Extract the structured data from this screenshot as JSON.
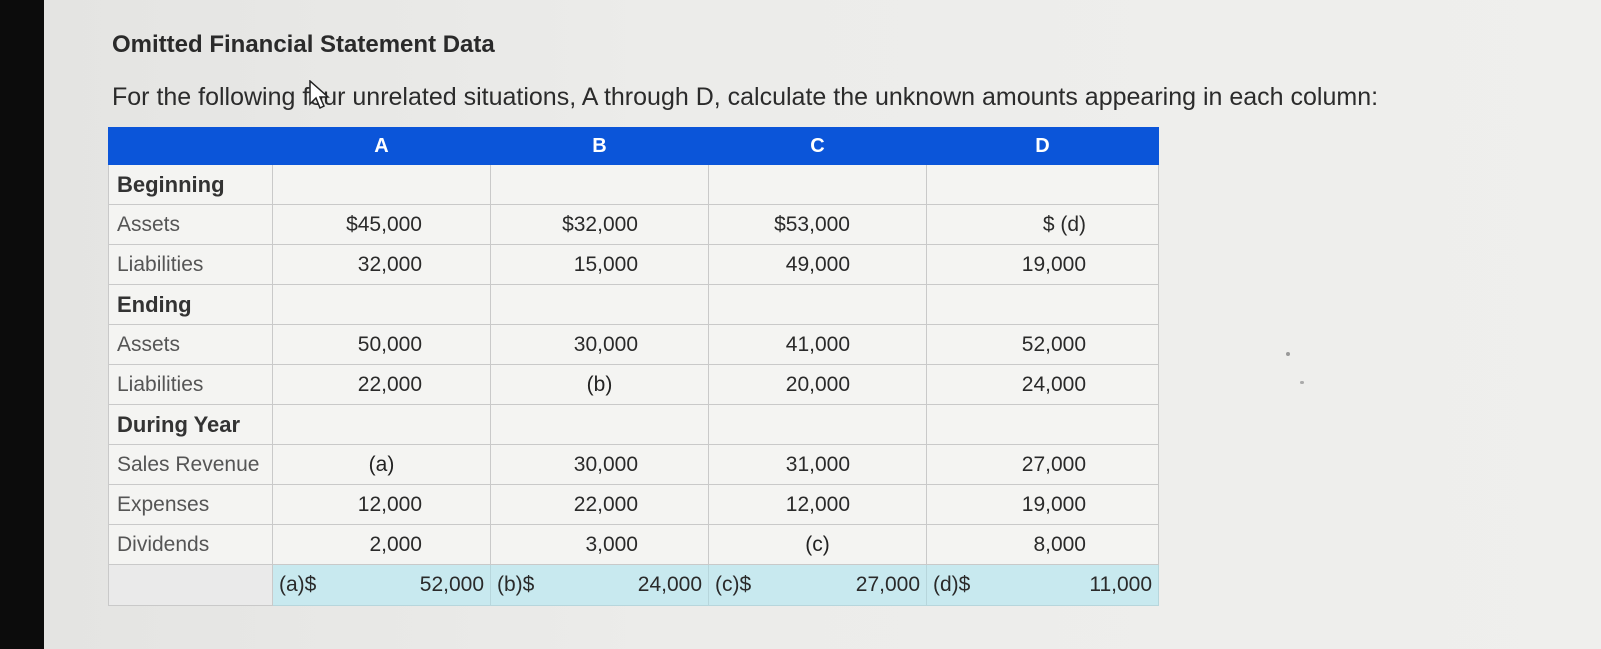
{
  "title": "Omitted Financial Statement Data",
  "instructions": "For the following four unrelated situations, A through D, calculate the unknown amounts appearing in each column:",
  "columns": [
    "A",
    "B",
    "C",
    "D"
  ],
  "sections": {
    "beginning": "Beginning",
    "ending": "Ending",
    "during_year": "During Year"
  },
  "rows": {
    "beg_assets": {
      "label": "Assets",
      "values": [
        "$45,000",
        "$32,000",
        "$53,000",
        "$ (d)"
      ]
    },
    "beg_liabilities": {
      "label": "Liabilities",
      "values": [
        "32,000",
        "15,000",
        "49,000",
        "19,000"
      ]
    },
    "end_assets": {
      "label": "Assets",
      "values": [
        "50,000",
        "30,000",
        "41,000",
        "52,000"
      ]
    },
    "end_liabilities": {
      "label": "Liabilities",
      "values": [
        "22,000",
        "(b)",
        "20,000",
        "24,000"
      ]
    },
    "sales_revenue": {
      "label": "Sales Revenue",
      "values": [
        "(a)",
        "30,000",
        "31,000",
        "27,000"
      ]
    },
    "expenses": {
      "label": "Expenses",
      "values": [
        "12,000",
        "22,000",
        "12,000",
        "19,000"
      ]
    },
    "dividends": {
      "label": "Dividends",
      "values": [
        "2,000",
        "3,000",
        "(c)",
        "8,000"
      ]
    }
  },
  "answers": [
    {
      "prefix": "(a)$",
      "value": "52,000"
    },
    {
      "prefix": "(b)$",
      "value": "24,000"
    },
    {
      "prefix": "(c)$",
      "value": "27,000"
    },
    {
      "prefix": "(d)$",
      "value": "11,000"
    }
  ]
}
